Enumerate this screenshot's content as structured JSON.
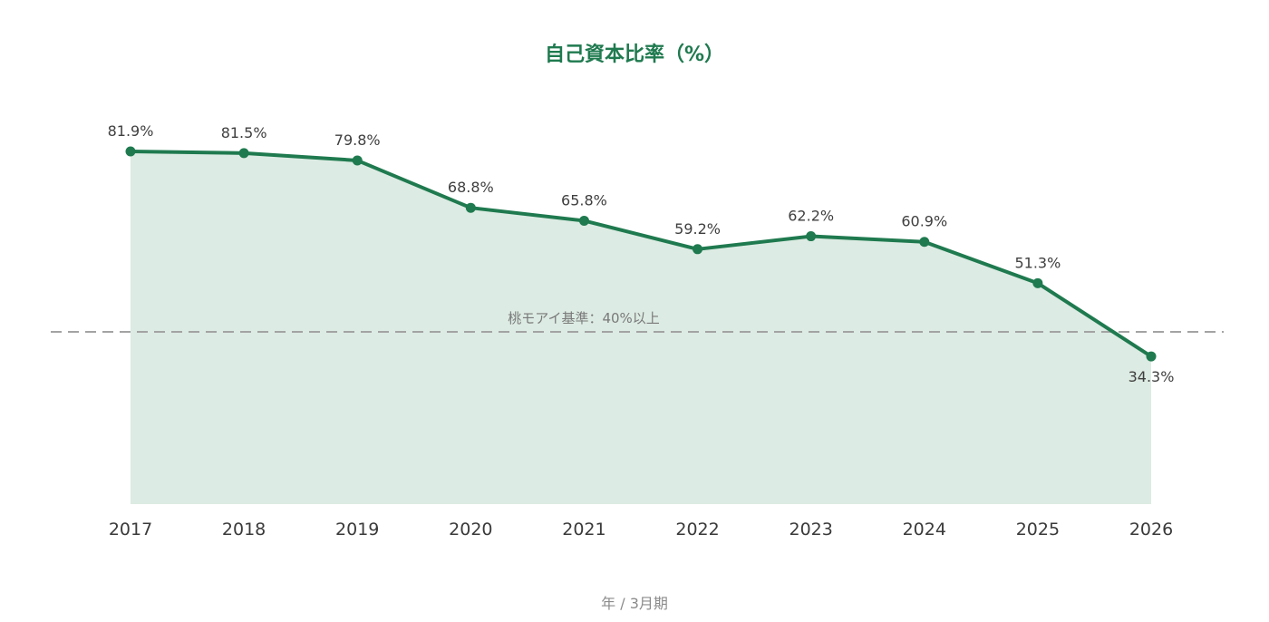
{
  "chart_data": {
    "type": "area",
    "title": "自己資本比率（%）",
    "xlabel": "年 / 3月期",
    "ylabel": "",
    "x": [
      "2017",
      "2018",
      "2019",
      "2020",
      "2021",
      "2022",
      "2023",
      "2024",
      "2025",
      "2026"
    ],
    "series": [
      {
        "values": [
          81.9,
          81.5,
          79.8,
          68.8,
          65.8,
          59.2,
          62.2,
          60.9,
          51.3,
          34.3
        ],
        "labels": [
          "81.9%",
          "81.5%",
          "79.8%",
          "68.8%",
          "65.8%",
          "59.2%",
          "62.2%",
          "60.9%",
          "51.3%",
          "34.3%"
        ]
      }
    ],
    "reference_line": {
      "value": 40,
      "label": "桃モアイ基準：40%以上",
      "style": "dashed"
    },
    "ylim": [
      0,
      100
    ],
    "grid": false,
    "legend": "none",
    "colors": {
      "line": "#1f7a4f",
      "fill": "#dcebe3",
      "title": "#1f7a4f",
      "reference_line": "#a3a3a3"
    }
  }
}
